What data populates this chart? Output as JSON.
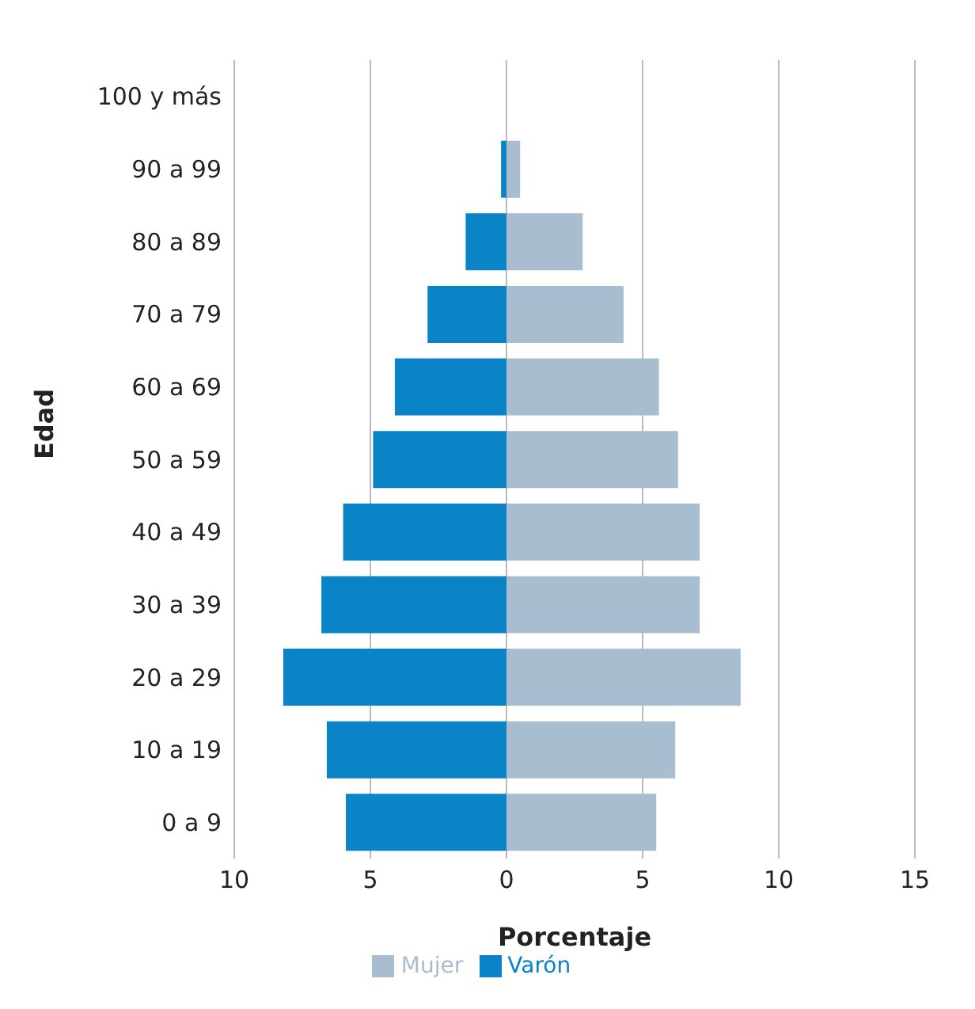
{
  "chart_data": {
    "type": "bar",
    "orientation": "horizontal",
    "stacked": true,
    "xlabel": "Porcentaje",
    "ylabel": "Edad",
    "categories": [
      "100 y más",
      "90 a 99",
      "80 a 89",
      "70 a 79",
      "60 a 69",
      "50 a 59",
      "40 a 49",
      "30 a 39",
      "20 a 29",
      "10 a 19",
      "0 a 9"
    ],
    "series": [
      {
        "name": "Varón",
        "color": "#0a84c6",
        "values": [
          0,
          -0.2,
          -1.5,
          -2.9,
          -4.1,
          -4.9,
          -6.0,
          -6.8,
          -8.2,
          -6.6,
          -5.9
        ]
      },
      {
        "name": "Mujer",
        "color": "#a9bdd1",
        "values": [
          0,
          0.5,
          2.8,
          4.3,
          5.6,
          6.3,
          7.1,
          7.1,
          8.6,
          6.2,
          5.5
        ]
      }
    ],
    "xlim": [
      -10,
      15
    ],
    "xticks": [
      {
        "value": -10,
        "label": "10"
      },
      {
        "value": -5,
        "label": "5"
      },
      0,
      5,
      10,
      15
    ],
    "grid": "x",
    "legend": "bottom"
  }
}
